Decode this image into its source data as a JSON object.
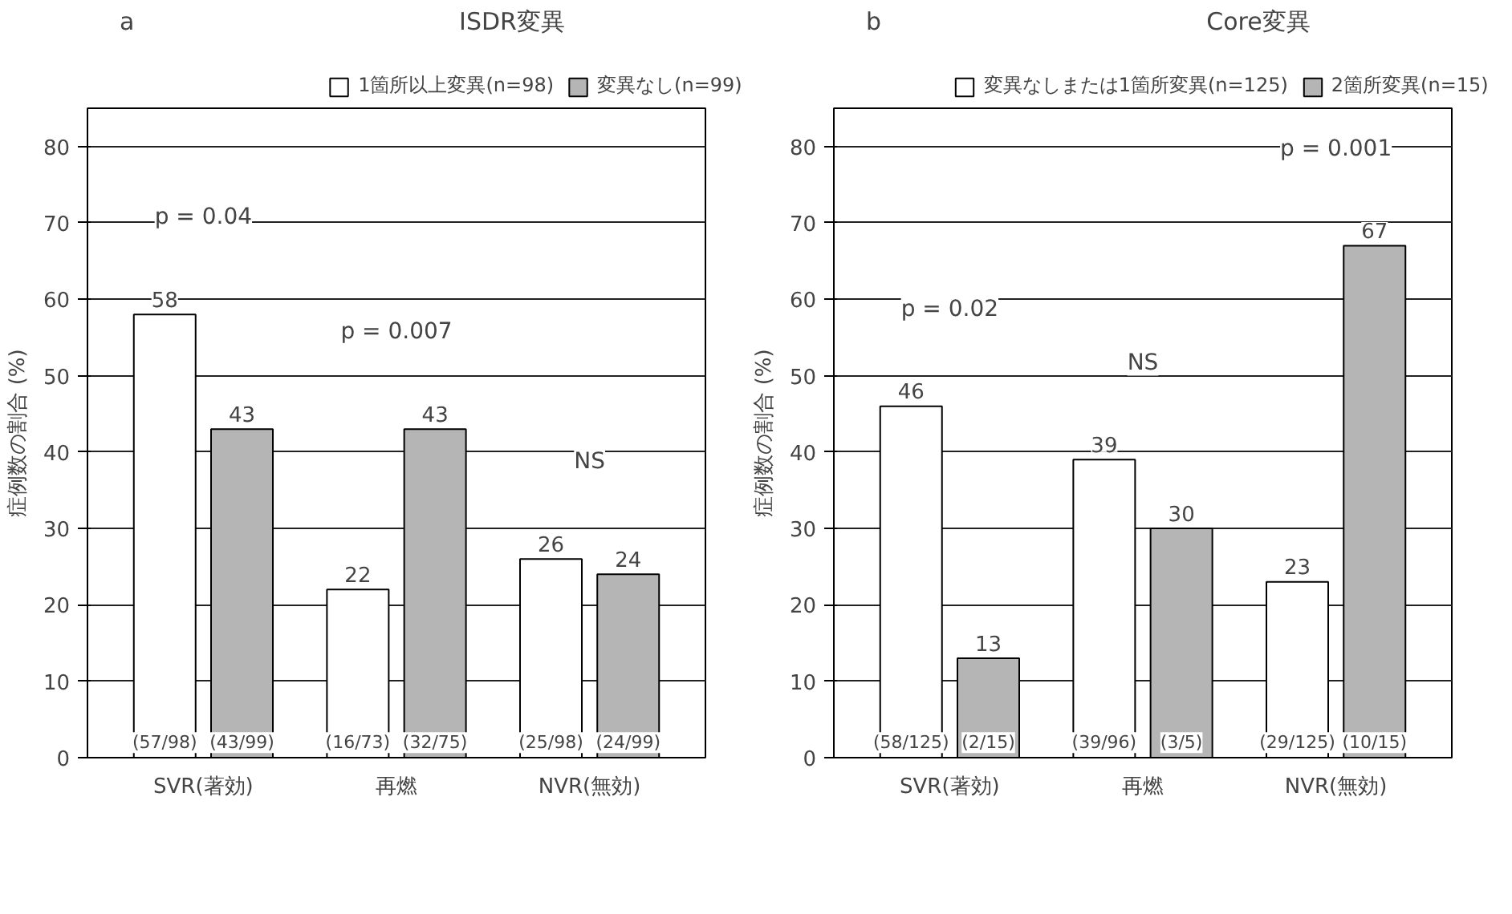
{
  "chart_data": [
    {
      "type": "bar",
      "title": "ISDR変異",
      "ylabel": "症例数の割合 (%)",
      "categories": [
        "SVR(著効)",
        "再燃",
        "NVR(無効)"
      ],
      "series": [
        {
          "name": "1箇所以上変異(n=98)",
          "color": "#ffffff",
          "values": [
            58,
            22,
            26
          ]
        },
        {
          "name": "変異なし(n=99)",
          "color": "#b5b5b5",
          "values": [
            43,
            43,
            24
          ]
        }
      ],
      "ylim": [
        0,
        85
      ],
      "yticks": [
        0,
        10,
        20,
        30,
        40,
        50,
        60,
        70,
        80
      ],
      "grid": "y",
      "legend": "top",
      "data_labels": true,
      "annotations": [
        "a",
        "p = 0.04",
        "p = 0.007",
        "NS",
        "(57/98)",
        "(43/99)",
        "(16/73)",
        "(32/75)",
        "(25/98)",
        "(24/99)"
      ]
    },
    {
      "type": "bar",
      "title": "Core変異",
      "ylabel": "症例数の割合 (%)",
      "categories": [
        "SVR(著効)",
        "再燃",
        "NVR(無効)"
      ],
      "series": [
        {
          "name": "変異なしまたは1箇所変異(n=125)",
          "color": "#ffffff",
          "values": [
            46,
            39,
            23
          ]
        },
        {
          "name": "2箇所変異(n=15)",
          "color": "#b5b5b5",
          "values": [
            13,
            30,
            67
          ]
        }
      ],
      "ylim": [
        0,
        85
      ],
      "yticks": [
        0,
        10,
        20,
        30,
        40,
        50,
        60,
        70,
        80
      ],
      "grid": "y",
      "legend": "top",
      "data_labels": true,
      "annotations": [
        "b",
        "p = 0.02",
        "NS",
        "p = 0.001",
        "(58/125)",
        "(2/15)",
        "(39/96)",
        "(3/5)",
        "(29/125)",
        "(10/15)"
      ]
    }
  ]
}
